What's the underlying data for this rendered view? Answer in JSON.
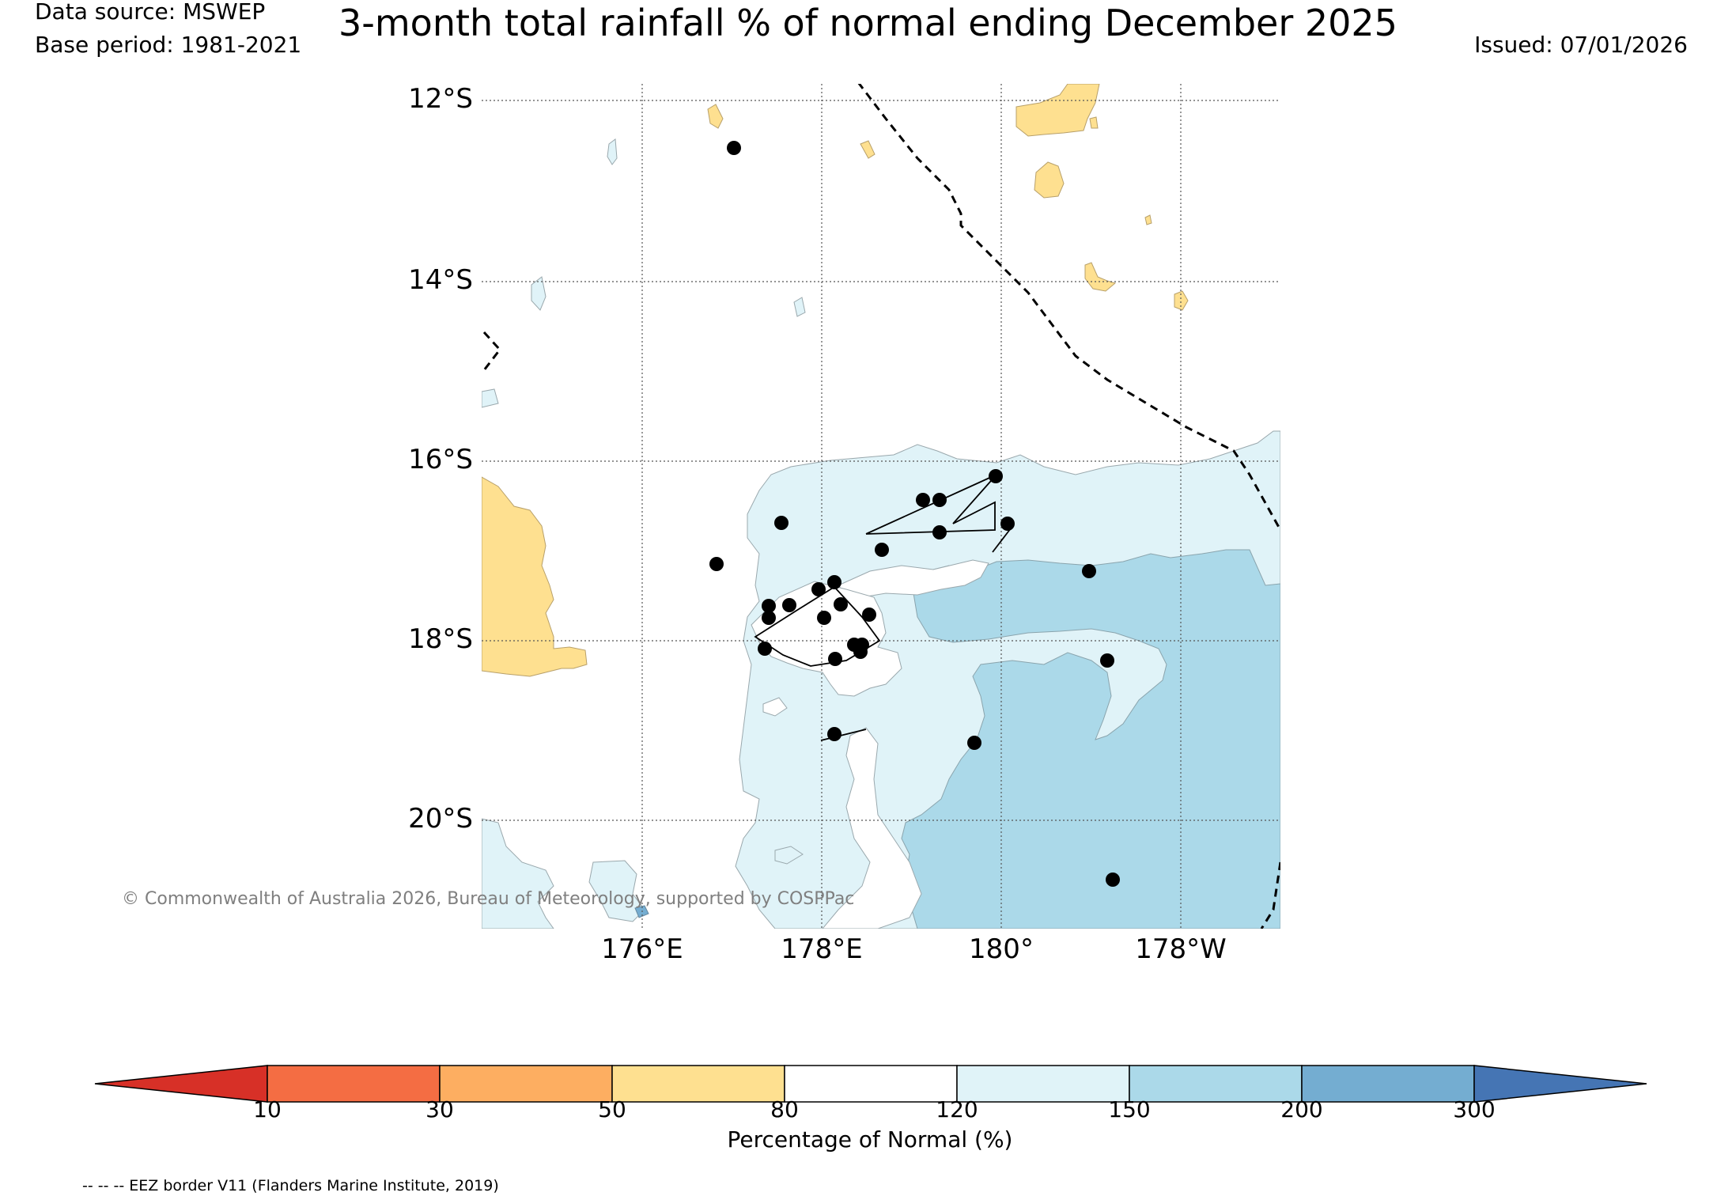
{
  "header": {
    "data_source": "Data source: MSWEP",
    "base_period": "Base period: 1981-2021",
    "title": "3-month total rainfall % of normal ending December 2025",
    "issued": "Issued: 07/01/2026"
  },
  "map": {
    "lon_range": [
      174.2,
      183.1
    ],
    "lat_range": [
      -21.2,
      -11.8
    ],
    "lat_labels": [
      "12°S",
      "14°S",
      "16°S",
      "18°S",
      "20°S"
    ],
    "lon_labels": [
      "176°E",
      "178°E",
      "180°",
      "178°W"
    ],
    "copyright": "© Commonwealth of Australia 2026, Bureau of Meteorology, supported by COSPPac",
    "eez_note": "-- -- -- EEZ border V11 (Flanders Marine Institute, 2019)"
  },
  "legend": {
    "label": "Percentage of Normal (%)",
    "ticks": [
      "10",
      "30",
      "50",
      "80",
      "120",
      "150",
      "200",
      "300"
    ],
    "colors": {
      "below10": "#d73027",
      "10-30": "#f46d43",
      "30-50": "#fdae61",
      "50-80": "#fee090",
      "80-120": "#ffffff",
      "120-150": "#e0f3f8",
      "150-200": "#abd9e9",
      "200-300": "#74add1",
      "above300": "#4575b4"
    }
  }
}
